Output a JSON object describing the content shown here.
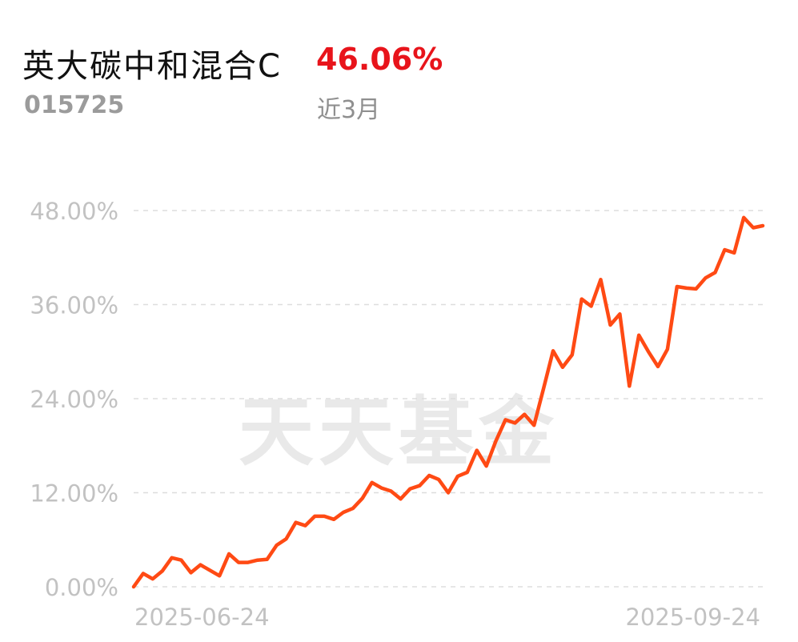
{
  "header": {
    "fund_name": "英大碳中和混合C",
    "return_value": "46.06%",
    "fund_code": "015725",
    "period": "近3月"
  },
  "watermark": "天天基金",
  "colors": {
    "line": "#ff4a14",
    "return": "#e8141b",
    "grid": "#dddddd",
    "axis_text": "#c2c2c2"
  },
  "chart_data": {
    "type": "line",
    "title": "",
    "xlabel": "",
    "ylabel": "",
    "ylim": [
      0,
      48
    ],
    "y_ticks": [
      "0.00%",
      "12.00%",
      "24.00%",
      "36.00%",
      "48.00%"
    ],
    "x_tick_labels": [
      "2025-06-24",
      "2025-09-24"
    ],
    "grid": true,
    "series": [
      {
        "values": [
          0.0,
          1.7,
          1.0,
          2.0,
          3.7,
          3.4,
          1.8,
          2.8,
          2.1,
          1.4,
          4.2,
          3.1,
          3.1,
          3.4,
          3.5,
          5.3,
          6.1,
          8.2,
          7.8,
          9.0,
          9.0,
          8.6,
          9.5,
          10.0,
          11.3,
          13.3,
          12.6,
          12.2,
          11.2,
          12.5,
          12.9,
          14.2,
          13.7,
          12.0,
          14.1,
          14.6,
          17.4,
          15.4,
          18.6,
          21.3,
          20.9,
          22.0,
          20.6,
          25.3,
          30.1,
          28.0,
          29.6,
          36.7,
          35.8,
          39.2,
          33.4,
          34.8,
          25.6,
          32.1,
          30.0,
          28.1,
          30.3,
          38.3,
          38.1,
          38.0,
          39.4,
          40.1,
          43.0,
          42.6,
          47.1,
          45.8,
          46.06
        ]
      }
    ]
  }
}
